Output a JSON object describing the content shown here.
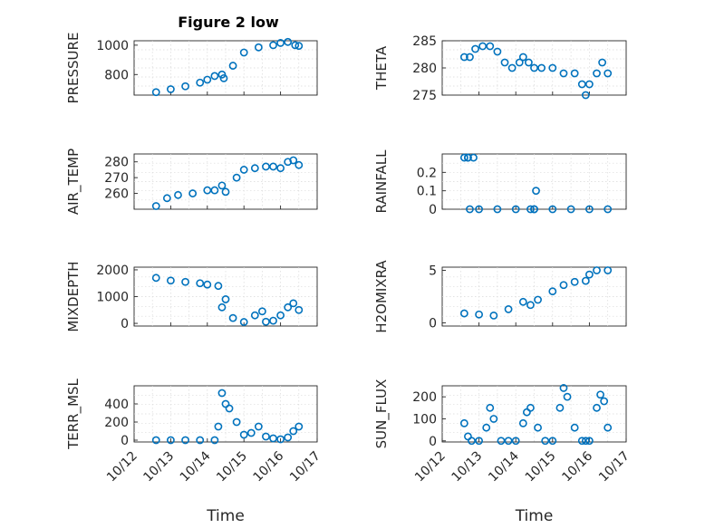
{
  "figure": {
    "title": "Figure 2 low",
    "marker_color": "#0072BD"
  },
  "chart_data": [
    {
      "id": "pressure",
      "type": "scatter",
      "title": "Figure 2 low",
      "ylabel": "PRESSURE",
      "xlabel": "",
      "xlim": [
        0,
        5
      ],
      "ylim": [
        660,
        1030
      ],
      "yticks": [
        800,
        1000
      ],
      "xticklabels": [],
      "grid": true,
      "series": [
        {
          "x": [
            0.6,
            1.0,
            1.4,
            1.8,
            2.0,
            2.2,
            2.4,
            2.45,
            2.7,
            3.0,
            3.4,
            3.8,
            4.0,
            4.2,
            4.4,
            4.5
          ],
          "y": [
            680,
            700,
            720,
            745,
            765,
            790,
            800,
            775,
            860,
            950,
            985,
            1000,
            1015,
            1022,
            1000,
            995
          ]
        }
      ]
    },
    {
      "id": "theta",
      "type": "scatter",
      "ylabel": "THETA",
      "xlabel": "",
      "xlim": [
        0,
        5
      ],
      "ylim": [
        275,
        285
      ],
      "yticks": [
        275,
        280,
        285
      ],
      "xticklabels": [],
      "grid": true,
      "series": [
        {
          "x": [
            0.6,
            0.75,
            0.9,
            1.1,
            1.3,
            1.5,
            1.7,
            1.9,
            2.1,
            2.2,
            2.35,
            2.5,
            2.7,
            3.0,
            3.3,
            3.6,
            3.8,
            3.9,
            4.0,
            4.2,
            4.35,
            4.5
          ],
          "y": [
            282,
            282,
            283.5,
            284,
            284,
            283,
            281,
            280,
            281,
            282,
            281,
            280,
            280,
            280,
            279,
            279,
            277,
            275,
            277,
            279,
            281,
            279
          ]
        }
      ]
    },
    {
      "id": "air_temp",
      "type": "scatter",
      "ylabel": "AIR_TEMP",
      "xlabel": "",
      "xlim": [
        0,
        5
      ],
      "ylim": [
        250,
        285
      ],
      "yticks": [
        260,
        270,
        280
      ],
      "xticklabels": [],
      "grid": true,
      "series": [
        {
          "x": [
            0.6,
            0.9,
            1.2,
            1.6,
            2.0,
            2.2,
            2.4,
            2.5,
            2.8,
            3.0,
            3.3,
            3.6,
            3.8,
            4.0,
            4.2,
            4.35,
            4.5
          ],
          "y": [
            252,
            257,
            259,
            260,
            262,
            262,
            265,
            261,
            270,
            275,
            276,
            277,
            277,
            276,
            280,
            281,
            278
          ]
        }
      ]
    },
    {
      "id": "rainfall",
      "type": "scatter",
      "ylabel": "RAINFALL",
      "xlabel": "",
      "xlim": [
        0,
        5
      ],
      "ylim": [
        0,
        0.3
      ],
      "yticks": [
        0,
        0.1,
        0.2
      ],
      "xticklabels": [],
      "grid": true,
      "series": [
        {
          "x": [
            0.6,
            0.7,
            0.75,
            0.85,
            1.0,
            1.5,
            2.0,
            2.5,
            2.55,
            3.0,
            3.5,
            4.0,
            4.5,
            2.4,
            2.5,
            0.7
          ],
          "y": [
            0.28,
            0.28,
            0,
            0.28,
            0,
            0,
            0,
            0,
            0.1,
            0,
            0,
            0,
            0,
            0,
            0,
            0.28
          ]
        }
      ]
    },
    {
      "id": "mixdepth",
      "type": "scatter",
      "ylabel": "MIXDEPTH",
      "xlabel": "",
      "xlim": [
        0,
        5
      ],
      "ylim": [
        -100,
        2100
      ],
      "yticks": [
        0,
        1000,
        2000
      ],
      "xticklabels": [],
      "grid": true,
      "series": [
        {
          "x": [
            0.6,
            1.0,
            1.4,
            1.8,
            2.0,
            2.3,
            2.4,
            2.5,
            2.7,
            3.0,
            3.3,
            3.5,
            3.6,
            3.8,
            4.0,
            4.2,
            4.35,
            4.5
          ],
          "y": [
            1700,
            1600,
            1550,
            1500,
            1450,
            1400,
            600,
            900,
            200,
            50,
            300,
            450,
            60,
            100,
            300,
            600,
            750,
            500
          ]
        }
      ]
    },
    {
      "id": "h2omixra",
      "type": "scatter",
      "ylabel": "H2OMIXRA",
      "xlabel": "",
      "xlim": [
        0,
        5
      ],
      "ylim": [
        -0.3,
        5.3
      ],
      "yticks": [
        0,
        5
      ],
      "xticklabels": [],
      "grid": true,
      "series": [
        {
          "x": [
            0.6,
            1.0,
            1.4,
            1.8,
            2.2,
            2.4,
            2.6,
            3.0,
            3.3,
            3.6,
            3.9,
            4.0,
            4.2,
            4.5
          ],
          "y": [
            0.9,
            0.8,
            0.7,
            1.3,
            2.0,
            1.7,
            2.2,
            3.0,
            3.6,
            3.9,
            4.0,
            4.6,
            5.0,
            5.0
          ]
        }
      ]
    },
    {
      "id": "terr_msl",
      "type": "scatter",
      "ylabel": "TERR_MSL",
      "xlabel": "Time",
      "xlim": [
        0,
        5
      ],
      "ylim": [
        -20,
        600
      ],
      "yticks": [
        0,
        200,
        400
      ],
      "xticklabels": [
        "10/12",
        "10/13",
        "10/14",
        "10/15",
        "10/16",
        "10/17"
      ],
      "grid": true,
      "series": [
        {
          "x": [
            0.6,
            1.0,
            1.4,
            1.8,
            2.2,
            2.3,
            2.4,
            2.5,
            2.6,
            2.8,
            3.0,
            3.2,
            3.4,
            3.6,
            3.8,
            4.0,
            4.2,
            4.35,
            4.5
          ],
          "y": [
            0,
            0,
            0,
            0,
            0,
            150,
            520,
            400,
            350,
            200,
            60,
            80,
            150,
            40,
            20,
            10,
            30,
            100,
            150
          ]
        }
      ]
    },
    {
      "id": "sun_flux",
      "type": "scatter",
      "ylabel": "SUN_FLUX",
      "xlabel": "Time",
      "xlim": [
        0,
        5
      ],
      "ylim": [
        -5,
        250
      ],
      "yticks": [
        0,
        100,
        200
      ],
      "xticklabels": [
        "10/12",
        "10/13",
        "10/14",
        "10/15",
        "10/16",
        "10/17"
      ],
      "grid": true,
      "series": [
        {
          "x": [
            0.6,
            0.7,
            0.8,
            1.0,
            1.2,
            1.3,
            1.4,
            1.6,
            1.8,
            2.0,
            2.2,
            2.3,
            2.4,
            2.6,
            2.8,
            3.0,
            3.2,
            3.3,
            3.4,
            3.6,
            3.8,
            3.9,
            4.0,
            4.2,
            4.3,
            4.4,
            4.5
          ],
          "y": [
            80,
            20,
            0,
            0,
            60,
            150,
            100,
            0,
            0,
            0,
            80,
            130,
            150,
            60,
            0,
            0,
            150,
            240,
            200,
            60,
            0,
            0,
            0,
            150,
            210,
            180,
            60
          ]
        }
      ]
    }
  ]
}
